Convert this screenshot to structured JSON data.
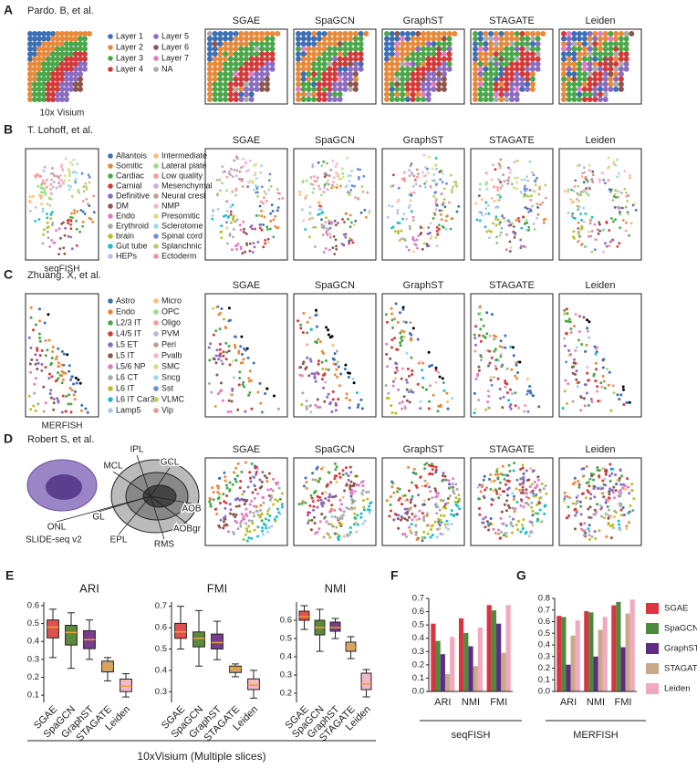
{
  "panels": [
    {
      "letter": "A",
      "source": "Pardo. B, et al.",
      "platform": "10x Visium",
      "legend": [
        "Layer 1",
        "Layer 2",
        "Layer 3",
        "Layer 4",
        "Layer 5",
        "Layer 6",
        "Layer 7",
        "NA"
      ]
    },
    {
      "letter": "B",
      "source": "T. Lohoff, et al.",
      "platform": "seqFISH",
      "legend": [
        "Allantois",
        "Somitic",
        "Cardiac",
        "Carnial",
        "Definitive",
        "DM",
        "Endo",
        "Erythroid",
        "brain",
        "Gut tube",
        "HEPs",
        "Intermediate",
        "Lateral plate",
        "Low quality",
        "Mesenchymal",
        "Neural crest",
        "NMP",
        "Presomitic",
        "Sclerotome",
        "Spinal cord",
        "Splanchnic",
        "Ectoderm"
      ]
    },
    {
      "letter": "C",
      "source": "Zhuang. X, et al.",
      "platform": "MERFISH",
      "legend": [
        "Astro",
        "Endo",
        "L2/3 IT",
        "L4/5 IT",
        "L5 ET",
        "L5 IT",
        "L5/6 NP",
        "L6 CT",
        "L6 IT",
        "L6 IT Car3",
        "Lamp5",
        "Micro",
        "OPC",
        "Oligo",
        "PVM",
        "Peri",
        "Pvalb",
        "SMC",
        "Sncg",
        "Sst",
        "VLMC",
        "Vip"
      ]
    },
    {
      "letter": "D",
      "source": "Robert S, et al.",
      "platform": "SLIDE-seq v2",
      "labels": [
        "IPL",
        "MCL",
        "GCL",
        "AOB",
        "AOBgr",
        "RMS",
        "EPL",
        "GL",
        "ONL"
      ]
    }
  ],
  "methods": [
    "SGAE",
    "SpaGCN",
    "GraphST",
    "STAGATE",
    "Leiden"
  ],
  "chart_data": [
    {
      "type": "box",
      "panel": "E",
      "title": "ARI",
      "categories": [
        "SGAE",
        "SpaGCN",
        "GraphST",
        "STAGATE",
        "Leiden"
      ],
      "colors": [
        "#e05050",
        "#5c8a3a",
        "#7a3d8c",
        "#d4a46a",
        "#f2b8c6"
      ],
      "min": [
        0.31,
        0.25,
        0.3,
        0.18,
        0.09
      ],
      "q1": [
        0.42,
        0.38,
        0.36,
        0.23,
        0.12
      ],
      "median": [
        0.48,
        0.45,
        0.41,
        0.26,
        0.15
      ],
      "q3": [
        0.52,
        0.49,
        0.46,
        0.29,
        0.19
      ],
      "max": [
        0.58,
        0.56,
        0.52,
        0.31,
        0.22
      ],
      "ylim": [
        0.06,
        0.62
      ],
      "yticks": [
        0.1,
        0.2,
        0.3,
        0.4,
        0.5,
        0.6
      ],
      "xlabel": "10xVisium (Multiple slices)"
    },
    {
      "type": "box",
      "title": "FMI",
      "categories": [
        "SGAE",
        "SpaGCN",
        "GraphST",
        "STAGATE",
        "Leiden"
      ],
      "colors": [
        "#e05050",
        "#5c8a3a",
        "#7a3d8c",
        "#d4a46a",
        "#f2b8c6"
      ],
      "min": [
        0.5,
        0.42,
        0.45,
        0.37,
        0.27
      ],
      "q1": [
        0.55,
        0.51,
        0.5,
        0.39,
        0.31
      ],
      "median": [
        0.58,
        0.55,
        0.53,
        0.41,
        0.33
      ],
      "q3": [
        0.62,
        0.58,
        0.57,
        0.42,
        0.36
      ],
      "max": [
        0.7,
        0.68,
        0.63,
        0.43,
        0.4
      ],
      "ylim": [
        0.25,
        0.72
      ],
      "yticks": [
        0.3,
        0.4,
        0.5,
        0.6,
        0.7
      ]
    },
    {
      "type": "box",
      "title": "NMI",
      "categories": [
        "SGAE",
        "SpaGCN",
        "GraphST",
        "STAGATE",
        "Leiden"
      ],
      "colors": [
        "#e05050",
        "#5c8a3a",
        "#7a3d8c",
        "#d4a46a",
        "#f2b8c6"
      ],
      "min": [
        0.55,
        0.43,
        0.5,
        0.39,
        0.18
      ],
      "q1": [
        0.6,
        0.52,
        0.54,
        0.43,
        0.22
      ],
      "median": [
        0.62,
        0.56,
        0.56,
        0.45,
        0.25
      ],
      "q3": [
        0.65,
        0.6,
        0.59,
        0.48,
        0.31
      ],
      "max": [
        0.68,
        0.66,
        0.61,
        0.51,
        0.33
      ],
      "ylim": [
        0.15,
        0.7
      ],
      "yticks": [
        0.2,
        0.3,
        0.4,
        0.5,
        0.6
      ]
    },
    {
      "type": "bar",
      "panel": "F",
      "categories": [
        "ARI",
        "NMI",
        "FMI"
      ],
      "series": [
        {
          "name": "SGAE",
          "color": "#d9343f",
          "values": [
            0.51,
            0.55,
            0.65
          ]
        },
        {
          "name": "SpaGCN",
          "color": "#4e8a3e",
          "values": [
            0.38,
            0.44,
            0.61
          ]
        },
        {
          "name": "GraphST",
          "color": "#5e2d83",
          "values": [
            0.28,
            0.34,
            0.51
          ]
        },
        {
          "name": "STAGATE",
          "color": "#c8a98a",
          "values": [
            0.13,
            0.19,
            0.29
          ]
        },
        {
          "name": "Leiden",
          "color": "#f0a9bd",
          "values": [
            0.41,
            0.48,
            0.65
          ]
        }
      ],
      "ylim": [
        0,
        0.7
      ],
      "yticks": [
        {
          "value": 0,
          "label": "0.0"
        },
        0.1,
        0.2,
        0.3,
        0.4,
        0.5,
        0.6,
        0.7
      ],
      "xlabel": "seqFISH"
    },
    {
      "type": "bar",
      "panel": "G",
      "categories": [
        "ARI",
        "NMI",
        "FMI"
      ],
      "series": [
        {
          "name": "SGAE",
          "color": "#d9343f",
          "values": [
            0.65,
            0.69,
            0.74
          ]
        },
        {
          "name": "SpaGCN",
          "color": "#4e8a3e",
          "values": [
            0.64,
            0.68,
            0.77
          ]
        },
        {
          "name": "GraphST",
          "color": "#5e2d83",
          "values": [
            0.23,
            0.3,
            0.38
          ]
        },
        {
          "name": "STAGATE",
          "color": "#c8a98a",
          "values": [
            0.48,
            0.53,
            0.67
          ]
        },
        {
          "name": "Leiden",
          "color": "#f0a9bd",
          "values": [
            0.61,
            0.64,
            0.79
          ]
        }
      ],
      "ylim": [
        0,
        0.8
      ],
      "yticks": [
        {
          "value": 0,
          "label": "0.0"
        },
        0.1,
        0.2,
        0.3,
        0.4,
        0.5,
        0.6,
        0.7,
        0.8
      ],
      "xlabel": "MERFISH"
    }
  ]
}
